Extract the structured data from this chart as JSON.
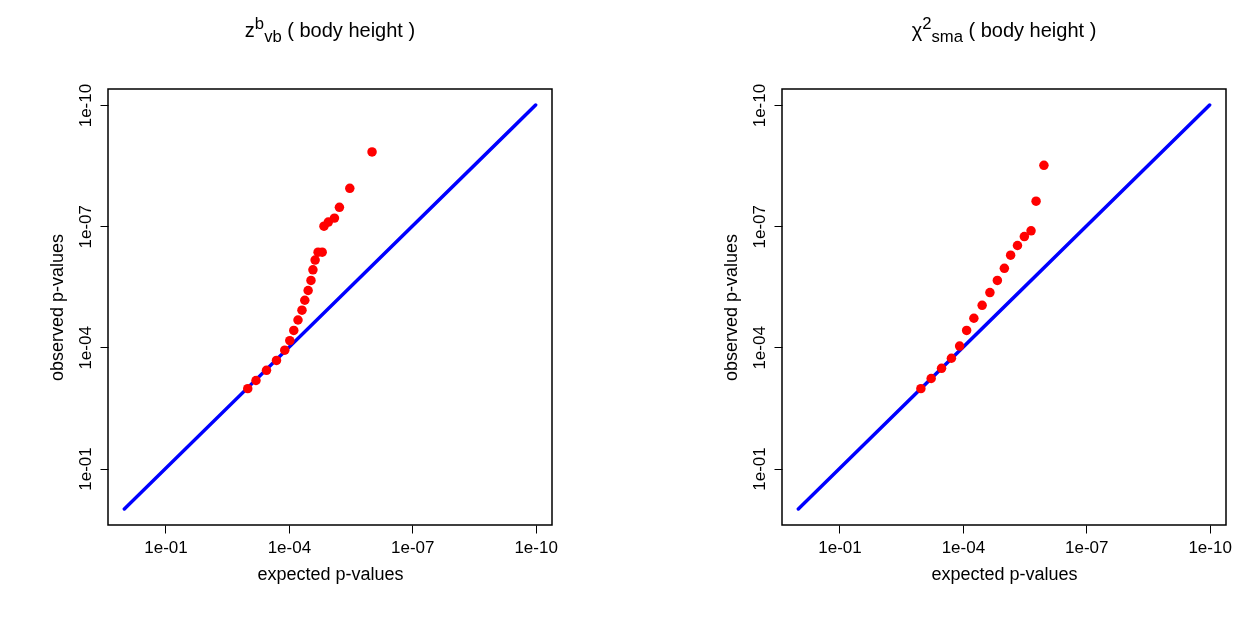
{
  "chart_data": [
    {
      "type": "scatter",
      "title": "z$^{b}$$_{vb}$ ( body height )",
      "xlabel": "expected p-values",
      "ylabel": "observed p-values",
      "log": "xy",
      "xlim": [
        2.5,
        4e-11
      ],
      "ylim": [
        2.5,
        4e-11
      ],
      "xticks": [
        {
          "value": 0.1,
          "label": "1e-01"
        },
        {
          "value": 0.0001,
          "label": "1e-04"
        },
        {
          "value": 1e-07,
          "label": "1e-07"
        },
        {
          "value": 1e-10,
          "label": "1e-10"
        }
      ],
      "yticks": [
        {
          "value": 0.1,
          "label": "1e-01"
        },
        {
          "value": 0.0001,
          "label": "1e-04"
        },
        {
          "value": 1e-07,
          "label": "1e-07"
        },
        {
          "value": 1e-10,
          "label": "1e-10"
        }
      ],
      "series": [
        {
          "marker": "circle",
          "color": "#ff0000",
          "x": [
            0.001,
            0.00063,
            0.00035,
            0.0002,
            0.000126,
            9.5e-05,
            7.6e-05,
            6e-05,
            4.8e-05,
            4.1e-05,
            3.4e-05,
            2.9e-05,
            2.6e-05,
            2.3e-05,
            1.95e-05,
            1.55e-05,
            1.4e-05,
            1.1e-05,
            7.8e-06,
            5.9e-06,
            3.3e-06,
            9.5e-07
          ],
          "values": [
            0.00105,
            0.00066,
            0.00037,
            0.00021,
            0.000117,
            6.8e-05,
            3.8e-05,
            2.1e-05,
            1.2e-05,
            6.8e-06,
            3.9e-06,
            2.2e-06,
            1.2e-06,
            6.9e-07,
            4.4e-07,
            4.4e-07,
            1e-07,
            7.9e-08,
            6.3e-08,
            3.4e-08,
            1.15e-08,
            1.45e-09
          ]
        },
        {
          "type": "line",
          "color": "#0000ff",
          "x": [
            1,
            1e-10
          ],
          "values": [
            1,
            1e-10
          ]
        }
      ]
    },
    {
      "type": "scatter",
      "title": "χ$^{2}$$_{sma}$ ( body height )",
      "xlabel": "expected p-values",
      "ylabel": "observed p-values",
      "log": "xy",
      "xlim": [
        2.5,
        4e-11
      ],
      "ylim": [
        2.5,
        4e-11
      ],
      "xticks": [
        {
          "value": 0.1,
          "label": "1e-01"
        },
        {
          "value": 0.0001,
          "label": "1e-04"
        },
        {
          "value": 1e-07,
          "label": "1e-07"
        },
        {
          "value": 1e-10,
          "label": "1e-10"
        }
      ],
      "yticks": [
        {
          "value": 0.1,
          "label": "1e-01"
        },
        {
          "value": 0.0001,
          "label": "1e-04"
        },
        {
          "value": 1e-07,
          "label": "1e-07"
        },
        {
          "value": 1e-10,
          "label": "1e-10"
        }
      ],
      "series": [
        {
          "marker": "circle",
          "color": "#ff0000",
          "x": [
            0.00105,
            0.00059,
            0.00033,
            0.00019,
            0.00012,
            8.1e-05,
            5.4e-05,
            3.4e-05,
            2.2e-05,
            1.45e-05,
            9.8e-06,
            6.9e-06,
            4.7e-06,
            3.2e-06,
            2.2e-06,
            1.66e-06,
            1.07e-06
          ],
          "values": [
            0.00105,
            0.00059,
            0.00033,
            0.000186,
            9.3e-05,
            3.8e-05,
            1.9e-05,
            9.1e-06,
            4.4e-06,
            2.2e-06,
            1.1e-06,
            5.2e-07,
            3e-07,
            1.8e-07,
            1.3e-07,
            2.4e-08,
            3.1e-09
          ]
        },
        {
          "type": "line",
          "color": "#0000ff",
          "x": [
            1,
            1e-10
          ],
          "values": [
            1,
            1e-10
          ]
        }
      ]
    }
  ]
}
